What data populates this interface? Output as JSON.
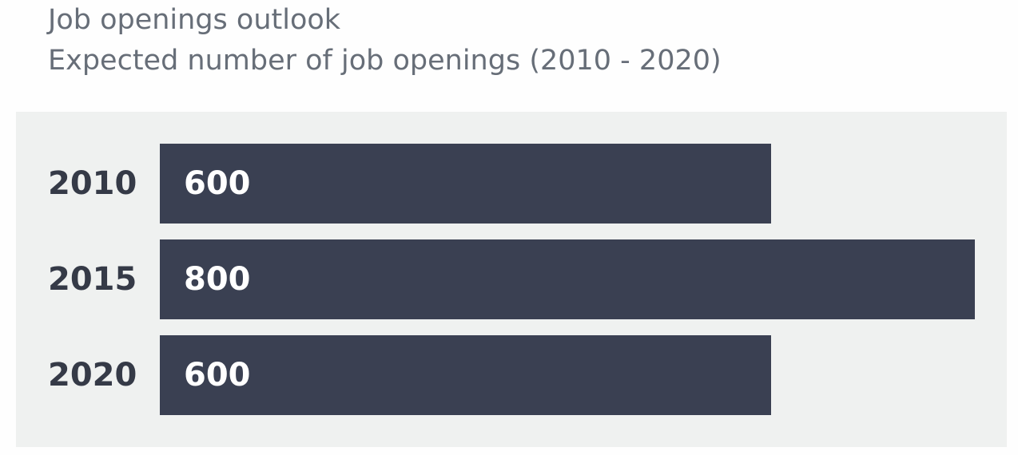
{
  "chart_data": {
    "type": "bar",
    "orientation": "horizontal",
    "title": "Job openings outlook",
    "subtitle": "Expected number of job openings (2010 - 2020)",
    "categories": [
      "2010",
      "2015",
      "2020"
    ],
    "values": [
      600,
      800,
      600
    ],
    "color": "#3a4052"
  }
}
